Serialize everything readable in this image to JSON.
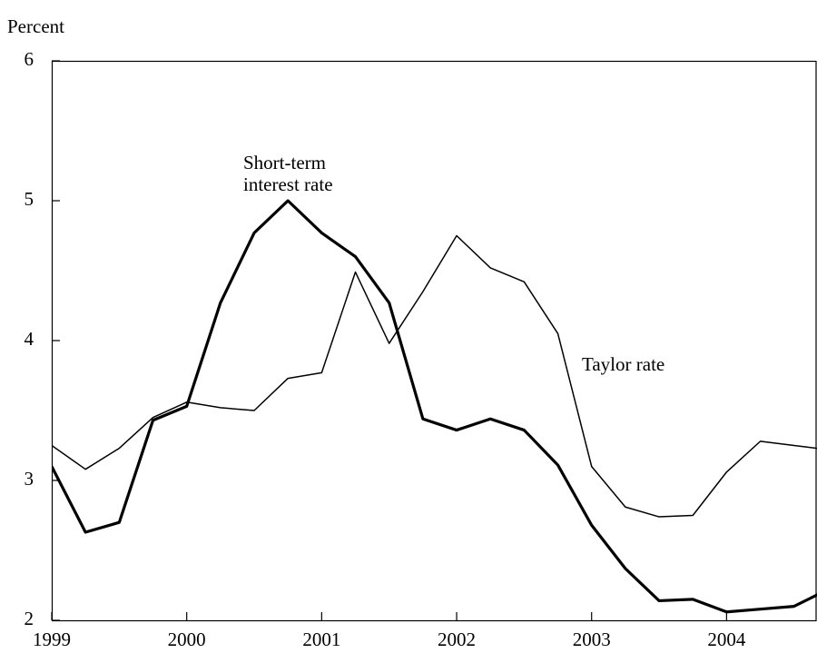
{
  "chart_data": {
    "type": "line",
    "y_label": "Percent",
    "x": [
      1999,
      1999.25,
      1999.5,
      1999.75,
      2000,
      2000.25,
      2000.5,
      2000.75,
      2001,
      2001.25,
      2001.5,
      2001.75,
      2002,
      2002.25,
      2002.5,
      2002.75,
      2003,
      2003.25,
      2003.5,
      2003.75,
      2004,
      2004.25,
      2004.5,
      2004.75
    ],
    "series": [
      {
        "color": "#000000",
        "values": [
          3.25,
          3.08,
          3.23,
          3.45,
          3.56,
          3.52,
          3.5,
          3.73,
          3.77,
          4.49,
          3.98,
          4.35,
          4.75,
          4.52,
          4.42,
          4.05,
          3.1,
          2.81,
          2.74,
          2.75,
          3.06,
          3.28,
          3.25,
          3.22
        ]
      },
      {
        "color": "#000000",
        "values": [
          3.1,
          2.63,
          2.7,
          3.43,
          3.53,
          4.27,
          4.77,
          5.0,
          4.77,
          4.6,
          4.27,
          3.44,
          3.36,
          3.44,
          3.36,
          3.11,
          2.68,
          2.37,
          2.14,
          2.15,
          2.06,
          2.08,
          2.1,
          2.22
        ]
      }
    ],
    "annotations": [
      {
        "lines": [
          "Short-term",
          "interest rate"
        ]
      },
      {
        "lines": [
          "Taylor rate"
        ]
      }
    ],
    "xlim": [
      1999,
      2004.67
    ],
    "xticks": [
      1999,
      2000,
      2001,
      2002,
      2003,
      2004
    ],
    "ylim": [
      2,
      6
    ],
    "yticks": [
      2,
      3,
      4,
      5,
      6
    ],
    "grid": false
  }
}
